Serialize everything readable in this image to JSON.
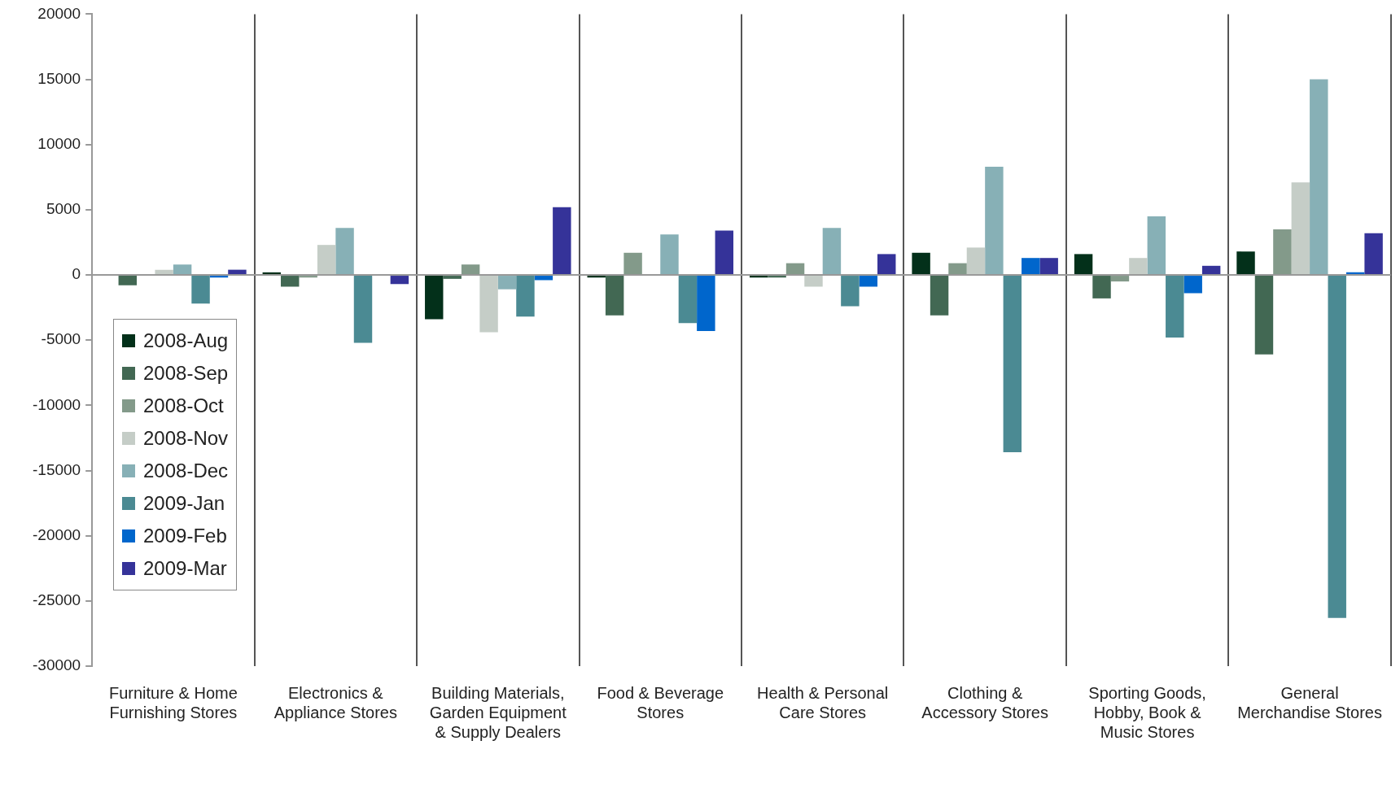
{
  "chart_data": {
    "type": "bar",
    "categories": [
      "Furniture & Home Furnishing Stores",
      "Electronics & Appliance Stores",
      "Building Materials, Garden Equipment & Supply Dealers",
      "Food & Beverage Stores",
      "Health & Personal Care Stores",
      "Clothing & Accessory Stores",
      "Sporting Goods, Hobby, Book & Music Stores",
      "General Merchandise Stores"
    ],
    "series": [
      {
        "name": "2008-Aug",
        "color": "#03301a",
        "values": [
          0,
          200,
          -3400,
          -200,
          -200,
          1700,
          1600,
          1800
        ]
      },
      {
        "name": "2008-Sep",
        "color": "#426853",
        "values": [
          -800,
          -900,
          -300,
          -3100,
          -200,
          -3100,
          -1800,
          -6100
        ]
      },
      {
        "name": "2008-Oct",
        "color": "#839a8a",
        "values": [
          0,
          -200,
          800,
          1700,
          900,
          900,
          -500,
          3500
        ]
      },
      {
        "name": "2008-Nov",
        "color": "#c5cdc7",
        "values": [
          400,
          2300,
          -4400,
          0,
          -900,
          2100,
          1300,
          7100
        ]
      },
      {
        "name": "2008-Dec",
        "color": "#87b0b6",
        "values": [
          800,
          3600,
          -1100,
          3100,
          3600,
          8300,
          4500,
          15000
        ]
      },
      {
        "name": "2009-Jan",
        "color": "#4b8a93",
        "values": [
          -2200,
          -5200,
          -3200,
          -3700,
          -2400,
          -13600,
          -4800,
          -26300
        ]
      },
      {
        "name": "2009-Feb",
        "color": "#0066cc",
        "values": [
          -200,
          0,
          -400,
          -4300,
          -900,
          1300,
          -1400,
          200
        ]
      },
      {
        "name": "2009-Mar",
        "color": "#353399",
        "values": [
          400,
          -700,
          5200,
          3400,
          1600,
          1300,
          700,
          3200
        ]
      }
    ],
    "ylim": [
      -30000,
      20000
    ],
    "yticks": [
      -30000,
      -25000,
      -20000,
      -15000,
      -10000,
      -5000,
      0,
      5000,
      10000,
      15000,
      20000
    ],
    "grid": "x",
    "legend": "left"
  }
}
